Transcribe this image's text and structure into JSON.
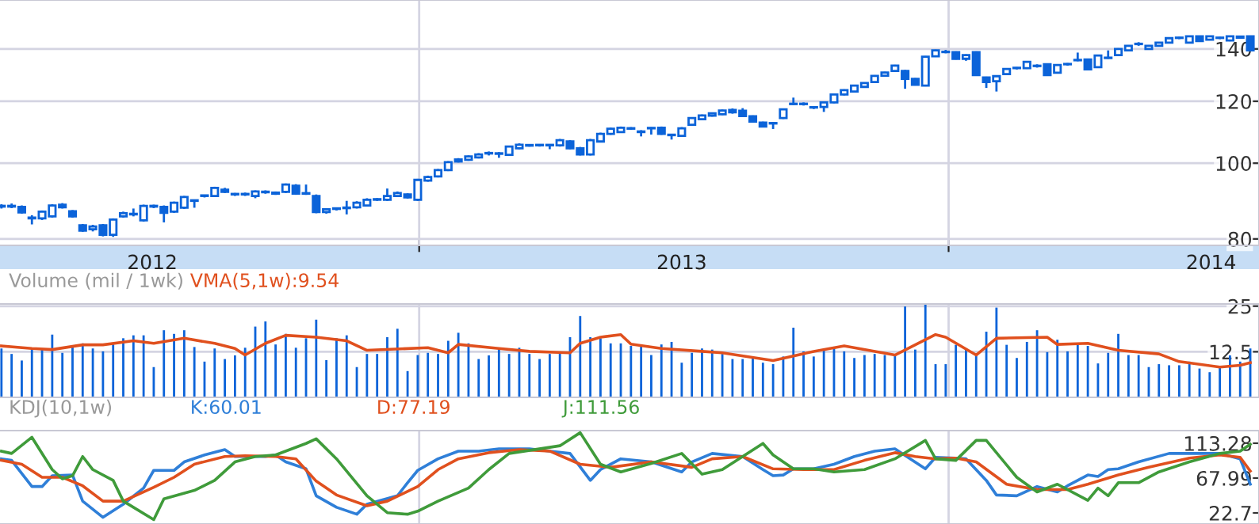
{
  "chart_data": [
    {
      "type": "candlestick",
      "color": "#0b63d9",
      "log": "y",
      "grid": "y",
      "xlim": [
        "2012-03-18",
        "2014-08-03"
      ],
      "ylim": [
        78.5,
        161.7
      ],
      "yticks": [
        80,
        100,
        120,
        140
      ],
      "xticks": [
        {
          "value": "2012-07-01",
          "label": "2012"
        },
        {
          "value": "2013-01-01",
          "label": null
        },
        {
          "value": "2013-07-01",
          "label": "2013"
        },
        {
          "value": "2014-01-01",
          "label": null
        },
        {
          "value": "2014-07-01",
          "label": "2014"
        }
      ],
      "ref_lines": [
        {
          "axis": "x",
          "value": "2013-01-01",
          "label": null,
          "color": "#d4d4e2"
        },
        {
          "axis": "x",
          "value": "2014-01-01",
          "label": null,
          "color": "#d4d4e2"
        }
      ],
      "x": [
        "2012-03-19",
        "2012-03-26",
        "2012-04-02",
        "2012-04-09",
        "2012-04-16",
        "2012-04-23",
        "2012-04-30",
        "2012-05-07",
        "2012-05-14",
        "2012-05-21",
        "2012-05-28",
        "2012-06-04",
        "2012-06-11",
        "2012-06-18",
        "2012-06-25",
        "2012-07-02",
        "2012-07-09",
        "2012-07-16",
        "2012-07-23",
        "2012-07-30",
        "2012-08-06",
        "2012-08-13",
        "2012-08-20",
        "2012-08-27",
        "2012-09-03",
        "2012-09-10",
        "2012-09-17",
        "2012-09-24",
        "2012-10-01",
        "2012-10-08",
        "2012-10-15",
        "2012-10-22",
        "2012-10-29",
        "2012-11-05",
        "2012-11-12",
        "2012-11-19",
        "2012-11-26",
        "2012-12-03",
        "2012-12-10",
        "2012-12-17",
        "2012-12-24",
        "2012-12-31",
        "2013-01-07",
        "2013-01-14",
        "2013-01-21",
        "2013-01-28",
        "2013-02-04",
        "2013-02-11",
        "2013-02-18",
        "2013-02-25",
        "2013-03-04",
        "2013-03-11",
        "2013-03-18",
        "2013-03-25",
        "2013-04-01",
        "2013-04-08",
        "2013-04-15",
        "2013-04-22",
        "2013-04-29",
        "2013-05-06",
        "2013-05-13",
        "2013-05-20",
        "2013-05-27",
        "2013-06-03",
        "2013-06-10",
        "2013-06-17",
        "2013-06-24",
        "2013-07-01",
        "2013-07-08",
        "2013-07-15",
        "2013-07-22",
        "2013-07-29",
        "2013-08-05",
        "2013-08-12",
        "2013-08-19",
        "2013-08-26",
        "2013-09-02",
        "2013-09-09",
        "2013-09-16",
        "2013-09-23",
        "2013-09-30",
        "2013-10-07",
        "2013-10-14",
        "2013-10-21",
        "2013-10-28",
        "2013-11-04",
        "2013-11-11",
        "2013-11-18",
        "2013-11-25",
        "2013-12-02",
        "2013-12-09",
        "2013-12-16",
        "2013-12-23",
        "2013-12-30",
        "2014-01-06",
        "2014-01-13",
        "2014-01-20",
        "2014-01-27",
        "2014-02-03",
        "2014-02-10",
        "2014-02-17",
        "2014-02-24",
        "2014-03-03",
        "2014-03-10",
        "2014-03-17",
        "2014-03-24",
        "2014-03-31",
        "2014-04-07",
        "2014-04-14",
        "2014-04-21",
        "2014-04-28",
        "2014-05-05",
        "2014-05-12",
        "2014-05-19",
        "2014-05-26",
        "2014-06-02",
        "2014-06-09",
        "2014-06-16",
        "2014-06-23",
        "2014-06-30",
        "2014-07-07",
        "2014-07-14",
        "2014-07-21",
        "2014-07-28"
      ],
      "ohlc": [
        [
          88,
          88.6,
          87.5,
          88.2
        ],
        [
          88.2,
          88.8,
          87.6,
          88
        ],
        [
          87.9,
          88.3,
          86.2,
          86.5
        ],
        [
          85.2,
          85.8,
          83.5,
          85
        ],
        [
          85,
          87,
          84.6,
          86.7
        ],
        [
          85.5,
          88.6,
          85.2,
          88.3
        ],
        [
          88.5,
          88.9,
          87.5,
          87.8
        ],
        [
          86.8,
          87.1,
          85.2,
          85.5
        ],
        [
          83.3,
          83.6,
          81.7,
          82
        ],
        [
          82.3,
          83.4,
          81.8,
          83
        ],
        [
          83.3,
          83.6,
          80.6,
          81
        ],
        [
          81,
          85,
          80.5,
          84.7
        ],
        [
          85.5,
          86.7,
          85.2,
          86.3
        ],
        [
          86,
          87.5,
          85.5,
          86
        ],
        [
          84.5,
          88.5,
          84.2,
          88.2
        ],
        [
          88,
          88.5,
          87.6,
          88.2
        ],
        [
          87.9,
          88.3,
          84,
          86.4
        ],
        [
          86.7,
          89.3,
          86.4,
          89
        ],
        [
          87.7,
          90.8,
          87.4,
          90.5
        ],
        [
          89.5,
          89.8,
          87.7,
          89.6
        ],
        [
          90.8,
          91.1,
          90.4,
          90.9
        ],
        [
          90.8,
          93.3,
          90.5,
          93
        ],
        [
          92.5,
          93,
          91.6,
          91.9
        ],
        [
          91.2,
          91.6,
          90.8,
          91.3
        ],
        [
          91.3,
          91.7,
          90.8,
          91.2
        ],
        [
          90.8,
          92.3,
          90.2,
          92
        ],
        [
          91.8,
          92.3,
          91.4,
          91.9
        ],
        [
          91.7,
          92,
          91.1,
          91.4
        ],
        [
          91.9,
          94.2,
          91.6,
          93.9
        ],
        [
          93.6,
          94,
          91.1,
          91.4
        ],
        [
          91.4,
          93.9,
          91.1,
          91.5
        ],
        [
          90.8,
          91.2,
          86.3,
          86.6
        ],
        [
          86.6,
          87.6,
          86.2,
          87.3
        ],
        [
          87.4,
          87.8,
          87,
          87.5
        ],
        [
          87.6,
          89.5,
          86,
          87.7
        ],
        [
          87.8,
          89.4,
          87.5,
          89
        ],
        [
          88.3,
          90.2,
          88,
          89.8
        ],
        [
          89.8,
          90.2,
          89.5,
          89.9
        ],
        [
          89.8,
          92.8,
          89.5,
          90.8
        ],
        [
          90.8,
          92,
          90.5,
          91.6
        ],
        [
          91.2,
          91.5,
          90.1,
          90.4
        ],
        [
          89.8,
          95.5,
          89.5,
          95.2
        ],
        [
          95,
          96.4,
          94.7,
          96
        ],
        [
          96.2,
          98.3,
          95.9,
          98
        ],
        [
          98,
          100.6,
          97.7,
          100.3
        ],
        [
          100.5,
          101.5,
          100.2,
          101.1
        ],
        [
          101,
          102.3,
          100.7,
          102
        ],
        [
          101.7,
          103,
          101.4,
          102.6
        ],
        [
          102.9,
          103.5,
          102.3,
          103
        ],
        [
          102.8,
          103.3,
          101.6,
          102.9
        ],
        [
          102.5,
          105.3,
          102.2,
          105
        ],
        [
          104.5,
          106,
          104.2,
          105.6
        ],
        [
          105.3,
          105.8,
          105,
          105.5
        ],
        [
          105.4,
          105.8,
          105,
          105.5
        ],
        [
          105.4,
          105.8,
          104.2,
          105.5
        ],
        [
          105.4,
          107.4,
          105,
          107
        ],
        [
          106.6,
          107,
          104.2,
          104.5
        ],
        [
          104.5,
          104.9,
          102.3,
          102.6
        ],
        [
          102.6,
          107.4,
          102.3,
          107
        ],
        [
          106.6,
          109.4,
          106.3,
          109
        ],
        [
          109,
          111,
          108.7,
          110.7
        ],
        [
          109.6,
          111.4,
          109.3,
          111
        ],
        [
          110.7,
          111.2,
          110.3,
          110.8
        ],
        [
          109.8,
          110.2,
          108.2,
          109.6
        ],
        [
          110.8,
          111.2,
          108.8,
          110.9
        ],
        [
          111,
          111.4,
          108.7,
          109
        ],
        [
          108.6,
          109,
          107.2,
          108.7
        ],
        [
          108.4,
          111.2,
          108.1,
          110.8
        ],
        [
          112,
          114.5,
          111.7,
          114.2
        ],
        [
          113.8,
          115.4,
          113.5,
          115.1
        ],
        [
          115,
          116.1,
          114.7,
          115.8
        ],
        [
          115.5,
          117.1,
          115.2,
          116.8
        ],
        [
          117,
          117.5,
          115.7,
          116.2
        ],
        [
          116.7,
          117.6,
          114.6,
          114.9
        ],
        [
          114.8,
          115.1,
          112.7,
          113
        ],
        [
          112.7,
          113,
          111.1,
          111.4
        ],
        [
          112.4,
          112.9,
          110.6,
          112.5
        ],
        [
          114.2,
          117.5,
          113.9,
          117.2
        ],
        [
          119,
          121.3,
          118.6,
          119.1
        ],
        [
          119.1,
          119.6,
          118.5,
          119
        ],
        [
          117.8,
          118.2,
          117.3,
          117.9
        ],
        [
          118,
          119.9,
          116.3,
          119.6
        ],
        [
          119.6,
          122.7,
          119.3,
          122.4
        ],
        [
          122.4,
          124.3,
          122.1,
          124
        ],
        [
          123.5,
          126,
          123.2,
          125.7
        ],
        [
          125.2,
          126.9,
          124.9,
          126.6
        ],
        [
          127,
          129.6,
          126.7,
          129.3
        ],
        [
          129.4,
          130.9,
          129.1,
          130.6
        ],
        [
          131.2,
          133.6,
          130.9,
          133.3
        ],
        [
          131.2,
          131.6,
          124.5,
          128.2
        ],
        [
          128.2,
          128.5,
          125.7,
          126
        ],
        [
          125.7,
          137.1,
          125.4,
          136.8
        ],
        [
          137,
          139.7,
          136.7,
          139.4
        ],
        [
          138.7,
          139.6,
          138.2,
          138.8
        ],
        [
          138.7,
          139,
          135.7,
          136
        ],
        [
          136,
          137.8,
          135.2,
          137.5
        ],
        [
          138.7,
          139,
          129.3,
          129.6
        ],
        [
          128.7,
          129,
          124.8,
          127
        ],
        [
          127.3,
          129.5,
          123.5,
          129.2
        ],
        [
          130,
          132.3,
          129.7,
          132
        ],
        [
          132.3,
          132.7,
          131.8,
          132.4
        ],
        [
          132.3,
          135.1,
          132,
          134.8
        ],
        [
          133.1,
          133.8,
          132.5,
          133.2
        ],
        [
          133.8,
          134.1,
          129.3,
          129.6
        ],
        [
          130.5,
          133.8,
          130.2,
          133.5
        ],
        [
          133.8,
          134.3,
          133.3,
          133.9
        ],
        [
          135.4,
          138.5,
          135,
          135.5
        ],
        [
          135.7,
          136,
          131.5,
          131.8
        ],
        [
          132.7,
          137.6,
          132.4,
          137.3
        ],
        [
          136.3,
          139.4,
          136,
          136.4
        ],
        [
          137.5,
          140.3,
          137.2,
          140
        ],
        [
          139.4,
          141.6,
          139.1,
          141.3
        ],
        [
          142,
          142.8,
          141.3,
          142.1
        ],
        [
          140,
          141.6,
          139.7,
          141.3
        ],
        [
          141.3,
          142.9,
          141,
          142.6
        ],
        [
          142.6,
          144.8,
          142.3,
          144.5
        ],
        [
          144.6,
          145.1,
          144.1,
          144.7
        ],
        [
          142.6,
          145.6,
          142.3,
          145.3
        ],
        [
          145.3,
          145.6,
          143,
          143.3
        ],
        [
          143.9,
          145.6,
          143.6,
          145.3
        ],
        [
          144.6,
          145.1,
          144.1,
          144.7
        ],
        [
          143.5,
          145.6,
          143.2,
          145.3
        ],
        [
          144.7,
          145.5,
          144.4,
          145.2
        ],
        [
          145.3,
          145.6,
          139,
          139.4
        ]
      ]
    },
    {
      "type": "bar",
      "title": "Volume (mil / 1wk)",
      "grid": "y",
      "tick_labels": "y",
      "xlim": [
        "2012-03-18",
        "2014-08-03"
      ],
      "ylim": [
        0,
        25.6
      ],
      "yticks": [
        12.5,
        25
      ],
      "ref_lines": [
        {
          "axis": "x",
          "value": "2013-01-01",
          "label": null,
          "color": "#d4d4e2"
        },
        {
          "axis": "x",
          "value": "2014-01-01",
          "label": null,
          "color": "#d4d4e2"
        }
      ],
      "x": [
        "2012-03-19",
        "2012-03-26",
        "2012-04-02",
        "2012-04-09",
        "2012-04-16",
        "2012-04-23",
        "2012-04-30",
        "2012-05-07",
        "2012-05-14",
        "2012-05-21",
        "2012-05-28",
        "2012-06-04",
        "2012-06-11",
        "2012-06-18",
        "2012-06-25",
        "2012-07-02",
        "2012-07-09",
        "2012-07-16",
        "2012-07-23",
        "2012-07-30",
        "2012-08-06",
        "2012-08-13",
        "2012-08-20",
        "2012-08-27",
        "2012-09-03",
        "2012-09-10",
        "2012-09-17",
        "2012-09-24",
        "2012-10-01",
        "2012-10-08",
        "2012-10-15",
        "2012-10-22",
        "2012-10-29",
        "2012-11-05",
        "2012-11-12",
        "2012-11-19",
        "2012-11-26",
        "2012-12-03",
        "2012-12-10",
        "2012-12-17",
        "2012-12-24",
        "2012-12-31",
        "2013-01-07",
        "2013-01-14",
        "2013-01-21",
        "2013-01-28",
        "2013-02-04",
        "2013-02-11",
        "2013-02-18",
        "2013-02-25",
        "2013-03-04",
        "2013-03-11",
        "2013-03-18",
        "2013-03-25",
        "2013-04-01",
        "2013-04-08",
        "2013-04-15",
        "2013-04-22",
        "2013-04-29",
        "2013-05-06",
        "2013-05-13",
        "2013-05-20",
        "2013-05-27",
        "2013-06-03",
        "2013-06-10",
        "2013-06-17",
        "2013-06-24",
        "2013-07-01",
        "2013-07-08",
        "2013-07-15",
        "2013-07-22",
        "2013-07-29",
        "2013-08-05",
        "2013-08-12",
        "2013-08-19",
        "2013-08-26",
        "2013-09-02",
        "2013-09-09",
        "2013-09-16",
        "2013-09-23",
        "2013-09-30",
        "2013-10-07",
        "2013-10-14",
        "2013-10-21",
        "2013-10-28",
        "2013-11-04",
        "2013-11-11",
        "2013-11-18",
        "2013-11-25",
        "2013-12-02",
        "2013-12-09",
        "2013-12-16",
        "2013-12-23",
        "2013-12-30",
        "2014-01-06",
        "2014-01-13",
        "2014-01-20",
        "2014-01-27",
        "2014-02-03",
        "2014-02-10",
        "2014-02-17",
        "2014-02-24",
        "2014-03-03",
        "2014-03-10",
        "2014-03-17",
        "2014-03-24",
        "2014-03-31",
        "2014-04-07",
        "2014-04-14",
        "2014-04-21",
        "2014-04-28",
        "2014-05-05",
        "2014-05-12",
        "2014-05-19",
        "2014-05-26",
        "2014-06-02",
        "2014-06-09",
        "2014-06-16",
        "2014-06-23",
        "2014-06-30",
        "2014-07-07",
        "2014-07-14",
        "2014-07-21",
        "2014-07-28"
      ],
      "series": [
        {
          "type": "bar",
          "color": "#0b63d9",
          "values": [
            13.4,
            11.9,
            10.1,
            13.6,
            13.4,
            17.2,
            12.2,
            14.1,
            14.8,
            13.4,
            12.6,
            14.5,
            16.2,
            17,
            17,
            8.3,
            18.4,
            17.4,
            18.4,
            13.8,
            9.8,
            13.4,
            10.5,
            11.5,
            13.6,
            19.4,
            20.8,
            14.5,
            17.4,
            13.6,
            16.2,
            21.3,
            10.2,
            16.2,
            17,
            8.3,
            11.9,
            11.9,
            16.5,
            18.8,
            7.2,
            11.6,
            12.2,
            11.9,
            15.5,
            17.7,
            14.8,
            10.5,
            11.5,
            13.6,
            11.9,
            13.6,
            11.9,
            10.5,
            11.9,
            12.2,
            16.5,
            22.3,
            16.5,
            16.2,
            14.8,
            14.8,
            14.1,
            14.1,
            11.6,
            14.5,
            15.2,
            9.5,
            12.2,
            13.4,
            13.1,
            11.9,
            10.5,
            10.5,
            10.8,
            9.5,
            9.1,
            11.2,
            19.1,
            12.6,
            11.2,
            13.1,
            13.4,
            12.6,
            10.8,
            11.6,
            11.9,
            11.6,
            11.6,
            24.9,
            13.1,
            25.6,
            9.1,
            9.1,
            14.4,
            13.4,
            11.6,
            18,
            24.6,
            14.4,
            10.8,
            15.2,
            18.4,
            12.4,
            15.8,
            12.6,
            14.4,
            14.1,
            9.3,
            12.2,
            17.4,
            11.6,
            11.6,
            8.3,
            9.1,
            8.8,
            8.8,
            9.8,
            7.9,
            6.9,
            8.6,
            11.5,
            9.8,
            13.4
          ]
        },
        {
          "type": "line",
          "name": "VMA(5,1w):9.54",
          "color": "#e0501e",
          "x": [
            "2012-03-19",
            "2012-04-09",
            "2012-04-23",
            "2012-05-14",
            "2012-05-28",
            "2012-06-18",
            "2012-07-02",
            "2012-07-23",
            "2012-08-13",
            "2012-08-27",
            "2012-09-03",
            "2012-09-17",
            "2012-10-01",
            "2012-10-22",
            "2012-11-12",
            "2012-11-26",
            "2013-01-07",
            "2013-01-21",
            "2013-01-28",
            "2013-02-25",
            "2013-03-18",
            "2013-04-15",
            "2013-04-22",
            "2013-05-06",
            "2013-05-20",
            "2013-05-27",
            "2013-06-17",
            "2013-07-15",
            "2013-07-29",
            "2013-09-02",
            "2013-09-30",
            "2013-10-21",
            "2013-11-25",
            "2013-12-09",
            "2013-12-23",
            "2013-12-30",
            "2014-01-20",
            "2014-02-03",
            "2014-03-10",
            "2014-03-17",
            "2014-04-07",
            "2014-04-28",
            "2014-05-26",
            "2014-06-09",
            "2014-07-07",
            "2014-07-21",
            "2014-07-28"
          ],
          "values": [
            14.1,
            13.4,
            13.1,
            14.4,
            14.4,
            15.5,
            14.8,
            16.2,
            14.8,
            13.4,
            11.6,
            14.8,
            17,
            16.5,
            15.5,
            12.9,
            13.6,
            12.2,
            14.5,
            13.4,
            12.6,
            12.2,
            14.8,
            16.5,
            17.2,
            14.6,
            13.4,
            12.6,
            12.2,
            10.1,
            12.6,
            14.1,
            11.6,
            14.4,
            17.2,
            16.5,
            11.6,
            16.2,
            16.5,
            14.5,
            14.8,
            12.9,
            11.9,
            9.8,
            8.3,
            8.8,
            9.5
          ]
        }
      ]
    },
    {
      "type": "line",
      "title": "KDJ(10,1w)",
      "tick_labels": "y",
      "xlim": [
        "2012-03-18",
        "2014-08-03"
      ],
      "ylim": [
        8.3,
        129.7
      ],
      "yticks": [
        22.7,
        67.99,
        113.28
      ],
      "ref_lines": [
        {
          "axis": "x",
          "value": "2013-01-01",
          "label": null,
          "color": "#d4d4e2"
        },
        {
          "axis": "x",
          "value": "2014-01-01",
          "label": null,
          "color": "#d4d4e2"
        }
      ],
      "series": [
        {
          "name": "K:60.01",
          "color": "#2f7fd8",
          "x": [
            "2012-03-19",
            "2012-03-26",
            "2012-04-09",
            "2012-04-16",
            "2012-04-23",
            "2012-05-07",
            "2012-05-14",
            "2012-05-28",
            "2012-06-11",
            "2012-06-25",
            "2012-07-02",
            "2012-07-16",
            "2012-07-23",
            "2012-08-06",
            "2012-08-20",
            "2012-08-27",
            "2012-09-17",
            "2012-09-24",
            "2012-10-01",
            "2012-10-15",
            "2012-10-22",
            "2012-11-05",
            "2012-11-19",
            "2012-11-26",
            "2012-12-17",
            "2012-12-24",
            "2012-12-31",
            "2013-01-14",
            "2013-01-28",
            "2013-02-11",
            "2013-02-25",
            "2013-03-18",
            "2013-04-01",
            "2013-04-15",
            "2013-04-29",
            "2013-05-06",
            "2013-05-20",
            "2013-06-10",
            "2013-07-01",
            "2013-07-08",
            "2013-07-22",
            "2013-08-12",
            "2013-08-26",
            "2013-09-02",
            "2013-09-09",
            "2013-09-16",
            "2013-09-30",
            "2013-10-14",
            "2013-10-28",
            "2013-11-11",
            "2013-11-25",
            "2013-12-16",
            "2013-12-23",
            "2014-01-06",
            "2014-01-13",
            "2014-01-27",
            "2014-02-03",
            "2014-02-17",
            "2014-03-03",
            "2014-03-17",
            "2014-03-24",
            "2014-04-07",
            "2014-04-14",
            "2014-04-21",
            "2014-04-28",
            "2014-05-12",
            "2014-06-02",
            "2014-06-16",
            "2014-07-07",
            "2014-07-21",
            "2014-07-28"
          ],
          "values": [
            93,
            91,
            57,
            57,
            71,
            72,
            38,
            17,
            34,
            55,
            78,
            78,
            89,
            98,
            105,
            96,
            96,
            98,
            89,
            80,
            45,
            30,
            21,
            34,
            45,
            62,
            78,
            93,
            103,
            103,
            106,
            106,
            103,
            100,
            65,
            79,
            93,
            89,
            76,
            89,
            100,
            96,
            79,
            71,
            72,
            80,
            80,
            86,
            96,
            103,
            106,
            80,
            95,
            94,
            93,
            65,
            46,
            45,
            57,
            50,
            58,
            72,
            70,
            79,
            80,
            89,
            100,
            100,
            100,
            93,
            60
          ]
        },
        {
          "name": "D:77.19",
          "color": "#e0501e",
          "x": [
            "2012-03-19",
            "2012-04-02",
            "2012-04-16",
            "2012-04-30",
            "2012-05-14",
            "2012-05-28",
            "2012-06-11",
            "2012-07-02",
            "2012-07-16",
            "2012-07-30",
            "2012-08-20",
            "2012-09-03",
            "2012-09-24",
            "2012-10-08",
            "2012-10-22",
            "2012-11-05",
            "2012-11-26",
            "2012-12-10",
            "2012-12-31",
            "2013-01-14",
            "2013-01-28",
            "2013-02-18",
            "2013-03-11",
            "2013-04-01",
            "2013-04-22",
            "2013-05-13",
            "2013-06-10",
            "2013-07-08",
            "2013-07-22",
            "2013-08-12",
            "2013-09-02",
            "2013-09-23",
            "2013-10-14",
            "2013-11-04",
            "2013-11-25",
            "2013-12-09",
            "2013-12-23",
            "2014-01-06",
            "2014-01-20",
            "2014-02-10",
            "2014-03-03",
            "2014-03-24",
            "2014-04-07",
            "2014-04-28",
            "2014-05-19",
            "2014-06-16",
            "2014-07-07",
            "2014-07-21",
            "2014-07-28"
          ],
          "values": [
            91,
            86,
            69,
            69,
            58,
            38,
            38,
            56,
            69,
            86,
            96,
            97,
            96,
            93,
            64,
            46,
            32,
            38,
            57,
            79,
            93,
            101,
            105,
            103,
            86,
            82,
            89,
            82,
            93,
            96,
            80,
            79,
            79,
            91,
            101,
            96,
            93,
            94,
            89,
            60,
            53,
            53,
            60,
            72,
            82,
            94,
            98,
            95,
            77
          ]
        },
        {
          "name": "J:111.56",
          "color": "#3f9b3a",
          "x": [
            "2012-03-19",
            "2012-03-26",
            "2012-04-09",
            "2012-04-23",
            "2012-04-30",
            "2012-05-07",
            "2012-05-14",
            "2012-05-21",
            "2012-06-04",
            "2012-06-11",
            "2012-07-02",
            "2012-07-09",
            "2012-07-30",
            "2012-08-13",
            "2012-08-27",
            "2012-09-10",
            "2012-09-24",
            "2012-10-15",
            "2012-10-22",
            "2012-11-05",
            "2012-11-26",
            "2012-12-10",
            "2012-12-24",
            "2012-12-31",
            "2013-01-14",
            "2013-02-04",
            "2013-02-18",
            "2013-03-04",
            "2013-04-01",
            "2013-04-08",
            "2013-04-22",
            "2013-05-06",
            "2013-05-20",
            "2013-06-10",
            "2013-07-01",
            "2013-07-15",
            "2013-07-29",
            "2013-08-26",
            "2013-09-02",
            "2013-09-16",
            "2013-09-30",
            "2013-10-14",
            "2013-11-04",
            "2013-11-25",
            "2013-12-16",
            "2013-12-23",
            "2014-01-06",
            "2014-01-20",
            "2014-01-27",
            "2014-02-17",
            "2014-03-03",
            "2014-03-17",
            "2014-04-07",
            "2014-04-14",
            "2014-04-21",
            "2014-04-28",
            "2014-05-12",
            "2014-05-26",
            "2014-06-16",
            "2014-07-07",
            "2014-07-21",
            "2014-07-28"
          ],
          "values": [
            103,
            100,
            121,
            79,
            67,
            71,
            96,
            79,
            65,
            38,
            14,
            41,
            52,
            65,
            89,
            96,
            98,
            113,
            119,
            93,
            45,
            23,
            21,
            25,
            38,
            55,
            79,
            100,
            108,
            110,
            127,
            86,
            76,
            87,
            100,
            73,
            79,
            113,
            98,
            80,
            80,
            76,
            79,
            93,
            117,
            93,
            91,
            117,
            117,
            69,
            50,
            60,
            39,
            55,
            45,
            62,
            62,
            76,
            89,
            100,
            103,
            112
          ]
        }
      ]
    }
  ]
}
